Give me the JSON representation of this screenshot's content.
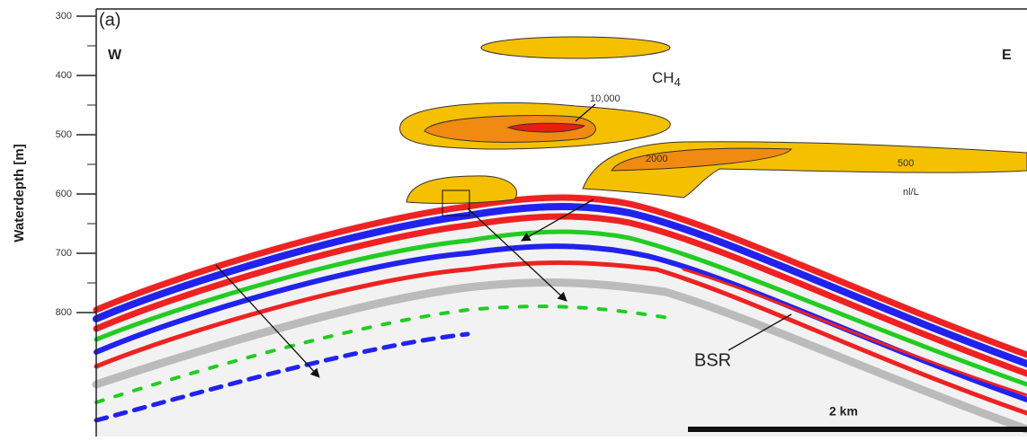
{
  "panel_label": "(a)",
  "axis": {
    "label": "Waterdepth [m]",
    "ticks": [
      300,
      400,
      500,
      600,
      700,
      800
    ]
  },
  "west": "W",
  "east": "E",
  "gas": {
    "name": "CH",
    "subscript": "4"
  },
  "contours": [
    "10,000",
    "2000",
    "500"
  ],
  "unit": "nl/L",
  "reflector": "BSR",
  "scale_bar": "2 km"
}
